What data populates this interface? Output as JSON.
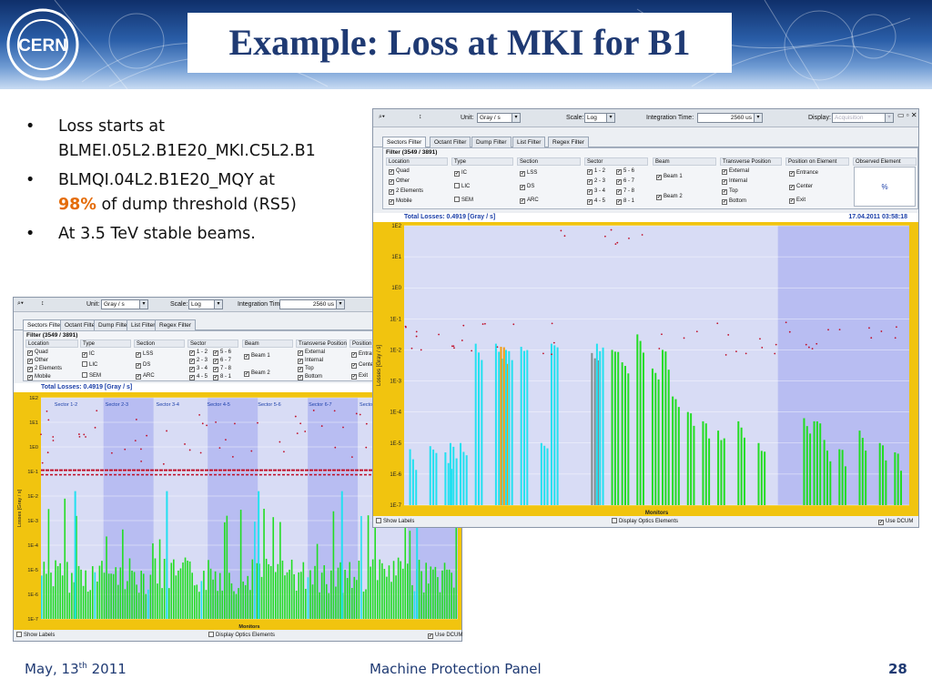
{
  "slide": {
    "title": "Example: Loss at MKI for B1",
    "logo_text": "CERN",
    "bullets": [
      {
        "line1": "Loss starts at",
        "line2": "BLMEI.05L2.B1E20_MKI.C5L2.B1"
      },
      {
        "line1": "BLMQI.04L2.B1E20_MQY at",
        "pct": "98%",
        "line2": " of dump threshold (RS5)"
      },
      {
        "line1": "At 3.5 TeV stable beams."
      }
    ],
    "footer": {
      "date_main": "May, 13",
      "date_sup": "th",
      "date_year": " 2011",
      "center": "Machine Protection Panel",
      "page": "28"
    }
  },
  "blm_app": {
    "toolbar": {
      "unit_label": "Unit:",
      "unit_value": "Gray / s",
      "scale_label": "Scale:",
      "scale_value": "Log",
      "integration_label": "Integration Time:",
      "integration_value": "2560 us",
      "display_label": "Display:",
      "display_value": "Acquisition"
    },
    "tabs": [
      "Sectors Filter",
      "Octant Filter",
      "Dump Filter",
      "List Filter",
      "Regex Filter"
    ],
    "filter_title": "Filter (3549 / 3891)",
    "columns": {
      "location": {
        "header": "Location",
        "items": [
          "Quad",
          "Other",
          "2 Elements",
          "Mobile"
        ]
      },
      "type": {
        "header": "Type",
        "items": [
          "IC",
          "LIC",
          "SEM"
        ]
      },
      "section": {
        "header": "Section",
        "items": [
          "LSS",
          "DS",
          "ARC"
        ]
      },
      "sector": {
        "header": "Sector",
        "items": [
          "1 - 2",
          "5 - 6",
          "2 - 3",
          "6 - 7",
          "3 - 4",
          "7 - 8",
          "4 - 5",
          "8 - 1"
        ]
      },
      "beam": {
        "header": "Beam",
        "items": [
          "Beam 1",
          "Beam 2"
        ]
      },
      "transverse": {
        "header": "Transverse Position",
        "items": [
          "External",
          "Internal",
          "Top",
          "Bottom"
        ]
      },
      "position": {
        "header": "Position on Element",
        "items": [
          "Entrance",
          "Center",
          "Exit"
        ]
      },
      "observed": {
        "header": "Observed Element",
        "value": "%"
      }
    },
    "total_losses": "Total Losses: 0.4919 [Gray / s]",
    "timestamp": "17.04.2011 03:58:18",
    "y_axis_label": "Losses [Gray / s]",
    "x_axis_label": "Monitors",
    "y_ticks": [
      "1E2",
      "1E1",
      "1E0",
      "1E-1",
      "1E-2",
      "1E-3",
      "1E-4",
      "1E-5",
      "1E-6",
      "1E-7"
    ],
    "sector_labels": [
      "Sector 1-2",
      "Sector 2-3",
      "Sector 3-4",
      "Sector 4-5",
      "Sector 5-6",
      "Sector 6-7",
      "Sector 7-8"
    ],
    "status": {
      "show_labels": "Show Labels",
      "optics": "Display Optics Elements",
      "dcum": "Use DCUM"
    },
    "colors": {
      "plot_bg": "#d8dcf5",
      "band": "#b8bdf2",
      "frame": "#f1c40f",
      "green": "#22dd22",
      "cyan": "#22e0f0",
      "red": "#c0102a"
    }
  }
}
